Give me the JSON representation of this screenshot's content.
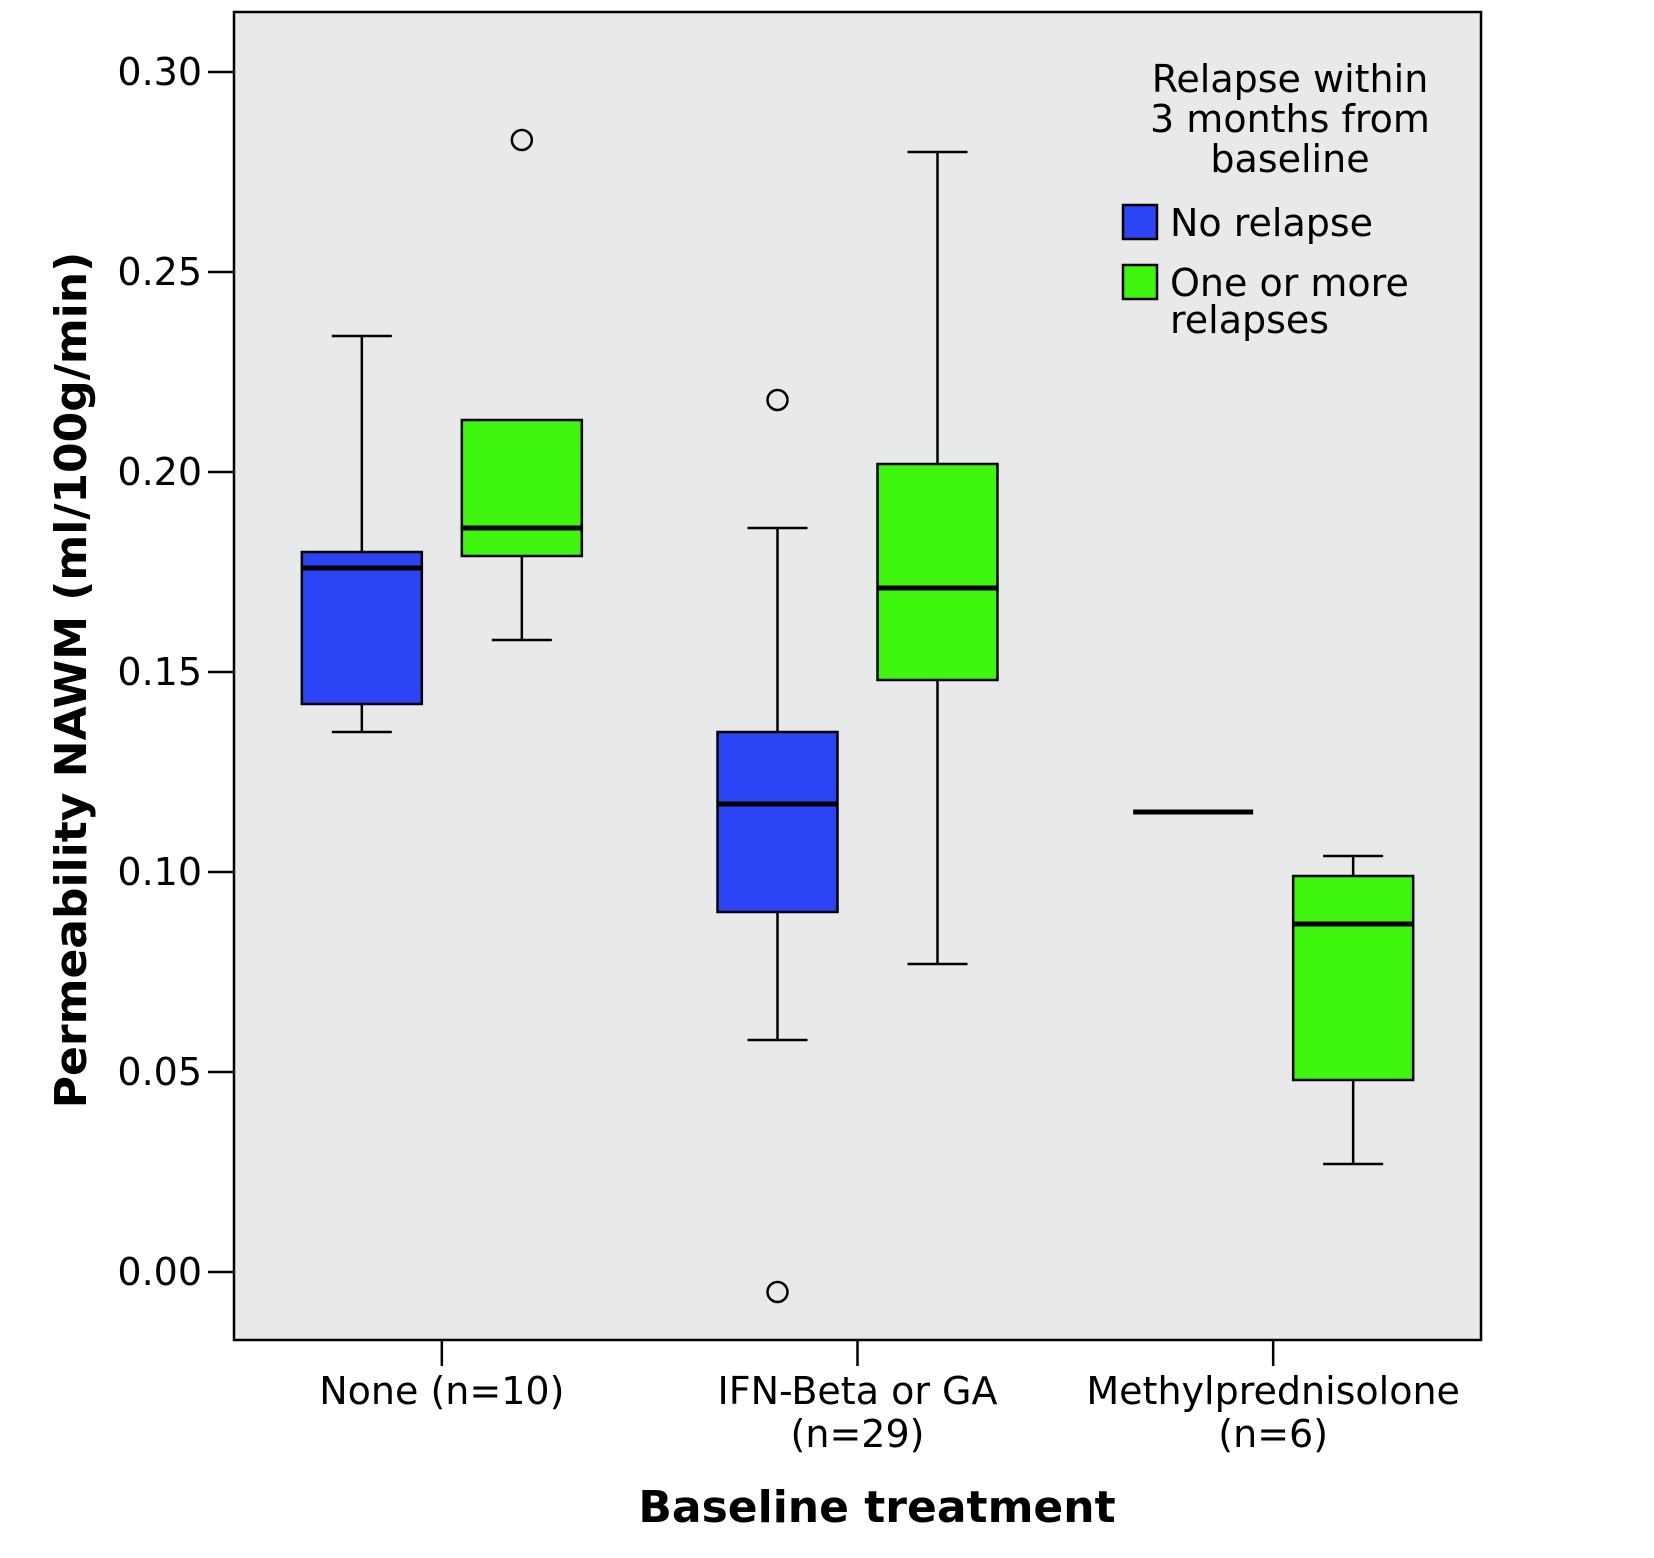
{
  "chart_data": {
    "type": "boxplot",
    "xlabel": "Baseline treatment",
    "ylabel": "Permeability NAWM (ml/100g/min)",
    "ylim": [
      -0.017,
      0.315
    ],
    "yticks": [
      "0.00",
      "0.05",
      "0.10",
      "0.15",
      "0.20",
      "0.25",
      "0.30"
    ],
    "ytick_values": [
      0.0,
      0.05,
      0.1,
      0.15,
      0.2,
      0.25,
      0.3
    ],
    "categories": [
      {
        "line1": "None (n=10)",
        "line2": ""
      },
      {
        "line1": "IFN-Beta or GA",
        "line2": "(n=29)"
      },
      {
        "line1": "Methylprednisolone",
        "line2": "(n=6)"
      }
    ],
    "legend": {
      "title_lines": [
        "Relapse within",
        "3 months from",
        "baseline"
      ],
      "placement": "top-right",
      "entries": [
        {
          "label_lines": [
            "No relapse"
          ],
          "color": "#2b44f5"
        },
        {
          "label_lines": [
            "One or more",
            "relapses"
          ],
          "color": "#3ef50e"
        }
      ]
    },
    "series": [
      {
        "name": "No relapse",
        "color": "#2b44f5",
        "boxes": [
          {
            "whisker_low": 0.135,
            "q1": 0.142,
            "median": 0.176,
            "q3": 0.18,
            "whisker_high": 0.234,
            "outliers": []
          },
          {
            "whisker_low": 0.058,
            "q1": 0.09,
            "median": 0.117,
            "q3": 0.135,
            "whisker_high": 0.186,
            "outliers": [
              0.218,
              -0.005
            ]
          },
          {
            "whisker_low": 0.115,
            "q1": 0.115,
            "median": 0.115,
            "q3": 0.115,
            "whisker_high": 0.115,
            "outliers": []
          }
        ]
      },
      {
        "name": "One or more relapses",
        "color": "#3ef50e",
        "boxes": [
          {
            "whisker_low": 0.158,
            "q1": 0.179,
            "median": 0.186,
            "q3": 0.213,
            "whisker_high": 0.213,
            "outliers": [
              0.283
            ]
          },
          {
            "whisker_low": 0.077,
            "q1": 0.148,
            "median": 0.171,
            "q3": 0.202,
            "whisker_high": 0.28,
            "outliers": []
          },
          {
            "whisker_low": 0.027,
            "q1": 0.048,
            "median": 0.087,
            "q3": 0.099,
            "whisker_high": 0.104,
            "outliers": []
          }
        ]
      }
    ]
  },
  "style": {
    "plot_background": "#e8eaea",
    "axis_color": "#000000"
  }
}
